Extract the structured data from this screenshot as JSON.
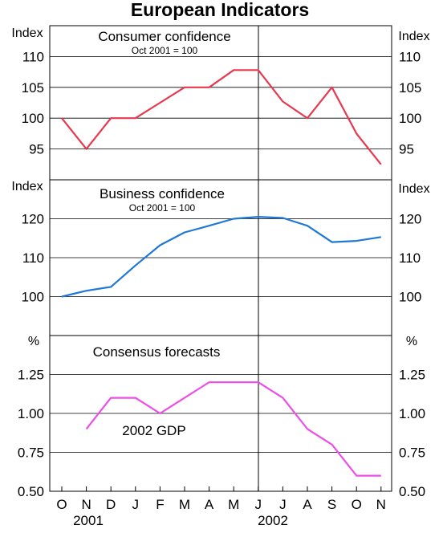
{
  "title": "European Indicators",
  "x_ticks": [
    "O",
    "N",
    "D",
    "J",
    "F",
    "M",
    "A",
    "M",
    "J",
    "J",
    "A",
    "S",
    "O",
    "N"
  ],
  "years": [
    "2001",
    "2002"
  ],
  "chart_data": [
    {
      "type": "line",
      "title": "Consumer confidence",
      "subtitle": "Oct 2001 = 100",
      "unit_label": "Index",
      "ylim": [
        90,
        115
      ],
      "y_ticks": [
        "110",
        "105",
        "100",
        "95"
      ],
      "color": "#e8384f",
      "x": [
        "Oct-2001",
        "Nov-2001",
        "Dec-2001",
        "Jan-2002",
        "Feb-2002",
        "Mar-2002",
        "Apr-2002",
        "May-2002",
        "Jun-2002",
        "Jul-2002",
        "Aug-2002",
        "Sep-2002",
        "Oct-2002",
        "Nov-2002"
      ],
      "values": [
        100,
        95,
        100,
        100,
        102.5,
        105,
        105,
        107.8,
        107.8,
        102.7,
        100,
        105,
        97.5,
        92.5
      ]
    },
    {
      "type": "line",
      "title": "Business confidence",
      "subtitle": "Oct 2001 = 100",
      "unit_label": "Index",
      "ylim": [
        90,
        130
      ],
      "y_ticks": [
        "120",
        "110",
        "100"
      ],
      "color": "#1f78d6",
      "x": [
        "Oct-2001",
        "Nov-2001",
        "Dec-2001",
        "Jan-2002",
        "Feb-2002",
        "Mar-2002",
        "Apr-2002",
        "May-2002",
        "Jun-2002",
        "Jul-2002",
        "Aug-2002",
        "Sep-2002",
        "Oct-2002",
        "Nov-2002"
      ],
      "values": [
        100,
        101.5,
        102.5,
        108,
        113.2,
        116.5,
        118.2,
        120,
        120.5,
        120.2,
        118.2,
        114,
        114.3,
        115.3
      ]
    },
    {
      "type": "line",
      "title": "Consensus forecasts",
      "unit_label": "%",
      "ylim": [
        0.5,
        1.5
      ],
      "y_ticks": [
        "1.25",
        "1.00",
        "0.75",
        "0.50"
      ],
      "color": "#ee4ee8",
      "series_label": "2002 GDP",
      "x": [
        "Nov-2001",
        "Dec-2001",
        "Jan-2002",
        "Feb-2002",
        "Mar-2002",
        "Apr-2002",
        "May-2002",
        "Jun-2002",
        "Jul-2002",
        "Aug-2002",
        "Sep-2002",
        "Oct-2002",
        "Nov-2002"
      ],
      "values": [
        0.9,
        1.1,
        1.1,
        1.0,
        1.1,
        1.2,
        1.2,
        1.2,
        1.1,
        0.9,
        0.8,
        0.6,
        0.6
      ]
    }
  ]
}
